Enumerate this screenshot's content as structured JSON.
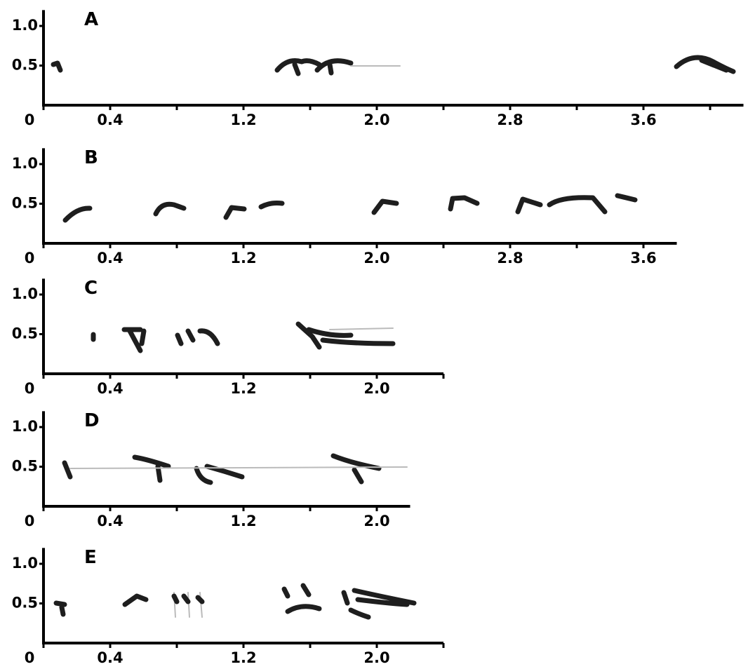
{
  "chart_data": [
    {
      "type": "spectrogram",
      "label": "A",
      "xlim": [
        0,
        4.2
      ],
      "ylim": [
        0,
        1.2
      ],
      "xticks": [
        0,
        {
          "value": 0.4,
          "label": "0.4"
        },
        {
          "value": 1.2,
          "label": "1.2"
        },
        {
          "value": 2,
          "label": "2.0"
        },
        {
          "value": 2.8,
          "label": "2.8"
        },
        {
          "value": 3.6,
          "label": "3.6"
        }
      ],
      "minor_xticks": [
        0.8,
        1.6,
        2.4,
        3.2,
        4.0
      ],
      "yticks": [
        {
          "value": 0.5,
          "label": "0.5"
        },
        {
          "value": 1,
          "label": "1.0"
        }
      ]
    },
    {
      "type": "spectrogram",
      "label": "B",
      "xlim": [
        0,
        3.8
      ],
      "ylim": [
        0,
        1.2
      ],
      "xticks": [
        0,
        {
          "value": 0.4,
          "label": "0.4"
        },
        {
          "value": 1.2,
          "label": "1.2"
        },
        {
          "value": 2,
          "label": "2.0"
        },
        {
          "value": 2.8,
          "label": "2.8"
        },
        {
          "value": 3.6,
          "label": "3.6"
        }
      ],
      "minor_xticks": [
        0.8,
        1.6,
        2.4,
        3.2
      ],
      "yticks": [
        {
          "value": 0.5,
          "label": "0.5"
        },
        {
          "value": 1,
          "label": "1.0"
        }
      ]
    },
    {
      "type": "spectrogram",
      "label": "C",
      "xlim": [
        0,
        2.4
      ],
      "ylim": [
        0,
        1.2
      ],
      "xticks": [
        0,
        {
          "value": 0.4,
          "label": "0.4"
        },
        {
          "value": 1.2,
          "label": "1.2"
        },
        {
          "value": 2,
          "label": "2.0"
        }
      ],
      "minor_xticks": [
        0.8,
        1.6,
        2.4
      ],
      "yticks": [
        {
          "value": 0.5,
          "label": "0.5"
        },
        {
          "value": 1,
          "label": "1.0"
        }
      ]
    },
    {
      "type": "spectrogram",
      "label": "D",
      "xlim": [
        0,
        2.2
      ],
      "ylim": [
        0,
        1.2
      ],
      "xticks": [
        0,
        {
          "value": 0.4,
          "label": "0.4"
        },
        {
          "value": 1.2,
          "label": "1.2"
        },
        {
          "value": 2,
          "label": "2.0"
        }
      ],
      "minor_xticks": [
        0.8,
        1.6
      ],
      "yticks": [
        {
          "value": 0.5,
          "label": "0.5"
        },
        {
          "value": 1,
          "label": "1.0"
        }
      ]
    },
    {
      "type": "spectrogram",
      "label": "E",
      "xlim": [
        0,
        2.4
      ],
      "ylim": [
        0,
        1.2
      ],
      "xticks": [
        0,
        {
          "value": 0.4,
          "label": "0.4"
        },
        {
          "value": 1.2,
          "label": "1.2"
        },
        {
          "value": 2,
          "label": "2.0"
        }
      ],
      "minor_xticks": [
        0.8,
        1.6,
        2.4
      ],
      "yticks": [
        {
          "value": 0.5,
          "label": "0.5"
        },
        {
          "value": 1,
          "label": "1.0"
        }
      ]
    }
  ]
}
